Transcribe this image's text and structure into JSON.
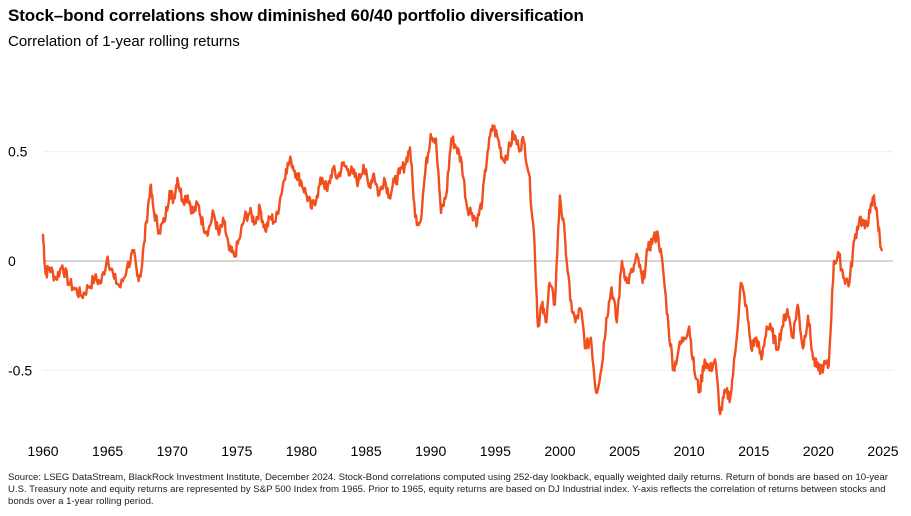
{
  "title": "Stock–bond correlations show diminished 60/40 portfolio diversification",
  "subtitle": "Correlation of 1-year rolling returns",
  "source": "Source: LSEG DataStream, BlackRock Investment Institute, December 2024. Stock-Bond correlations computed using 252-day lookback, equally weighted daily returns. Return of bonds are based on 10-year U.S. Treasury note and equity returns are represented by S&P 500 Index from 1965. Prior to 1965, equity returns are based on DJ Industrial index. Y-axis reflects the correlation of returns between stocks and bonds over a 1-year rolling period.",
  "colors": {
    "line": "#F24E1E",
    "zero_line": "#bdbdbd",
    "grid": "#eeeeee"
  },
  "chart_data": {
    "type": "line",
    "xlim": [
      1960,
      2025
    ],
    "ylim": [
      -0.8,
      0.8
    ],
    "x_ticks": [
      {
        "value": 1960,
        "label": "1960"
      },
      {
        "value": 1965,
        "label": "1965"
      },
      {
        "value": 1970,
        "label": "1970"
      },
      {
        "value": 1975,
        "label": "1975"
      },
      {
        "value": 1980,
        "label": "1980"
      },
      {
        "value": 1985,
        "label": "1985"
      },
      {
        "value": 1990,
        "label": "1990"
      },
      {
        "value": 1995,
        "label": "1995"
      },
      {
        "value": 2000,
        "label": "2000"
      },
      {
        "value": 2005,
        "label": "2005"
      },
      {
        "value": 2010,
        "label": "2010"
      },
      {
        "value": 2015,
        "label": "2015"
      },
      {
        "value": 2020,
        "label": "2020"
      },
      {
        "value": 2025,
        "label": "2025"
      }
    ],
    "y_ticks": [
      {
        "value": 0.5,
        "label": "0.5"
      },
      {
        "value": 0,
        "label": "0"
      },
      {
        "value": -0.5,
        "label": "-0.5"
      }
    ],
    "grid": true,
    "series": [
      {
        "x": [
          1960.0,
          1960.2,
          1960.5,
          1961.0,
          1961.5,
          1962.0,
          1962.5,
          1963.0,
          1963.5,
          1964.0,
          1964.5,
          1965.0,
          1965.5,
          1966.0,
          1966.5,
          1967.0,
          1967.3,
          1967.6,
          1968.0,
          1968.3,
          1968.6,
          1969.0,
          1969.4,
          1969.8,
          1970.1,
          1970.4,
          1970.8,
          1971.2,
          1971.6,
          1972.0,
          1972.4,
          1972.8,
          1973.2,
          1973.6,
          1974.0,
          1974.4,
          1974.8,
          1975.2,
          1975.6,
          1976.0,
          1976.4,
          1976.8,
          1977.2,
          1977.6,
          1978.0,
          1978.4,
          1978.8,
          1979.2,
          1979.6,
          1980.0,
          1980.4,
          1980.8,
          1981.2,
          1981.6,
          1982.0,
          1982.4,
          1982.8,
          1983.2,
          1983.6,
          1984.0,
          1984.4,
          1984.8,
          1985.2,
          1985.6,
          1986.0,
          1986.4,
          1986.8,
          1987.2,
          1987.6,
          1988.0,
          1988.4,
          1988.8,
          1989.2,
          1989.6,
          1990.0,
          1990.4,
          1990.8,
          1991.2,
          1991.6,
          1992.0,
          1992.4,
          1992.8,
          1993.2,
          1993.6,
          1994.0,
          1994.4,
          1994.8,
          1995.2,
          1995.6,
          1996.0,
          1996.4,
          1996.8,
          1997.2,
          1997.6,
          1998.0,
          1998.3,
          1998.6,
          1998.9,
          1999.2,
          1999.6,
          2000.0,
          2000.4,
          2000.8,
          2001.2,
          2001.6,
          2002.0,
          2002.4,
          2002.8,
          2003.2,
          2003.6,
          2004.0,
          2004.4,
          2004.8,
          2005.2,
          2005.6,
          2006.0,
          2006.4,
          2006.8,
          2007.2,
          2007.6,
          2008.0,
          2008.4,
          2008.8,
          2009.2,
          2009.6,
          2010.0,
          2010.4,
          2010.8,
          2011.2,
          2011.6,
          2012.0,
          2012.4,
          2012.8,
          2013.2,
          2013.6,
          2014.0,
          2014.4,
          2014.8,
          2015.2,
          2015.6,
          2016.0,
          2016.4,
          2016.8,
          2017.2,
          2017.6,
          2018.0,
          2018.4,
          2018.8,
          2019.2,
          2019.6,
          2020.0,
          2020.4,
          2020.8,
          2021.2,
          2021.6,
          2022.0,
          2022.4,
          2022.8,
          2023.2,
          2023.6,
          2024.0,
          2024.3,
          2024.6,
          2024.9
        ],
        "y": [
          0.12,
          -0.06,
          -0.03,
          -0.08,
          -0.02,
          -0.1,
          -0.13,
          -0.16,
          -0.12,
          -0.08,
          -0.1,
          0.02,
          -0.08,
          -0.12,
          -0.03,
          0.04,
          -0.07,
          -0.05,
          0.18,
          0.34,
          0.22,
          0.14,
          0.18,
          0.32,
          0.28,
          0.38,
          0.28,
          0.3,
          0.22,
          0.26,
          0.16,
          0.14,
          0.22,
          0.12,
          0.18,
          0.05,
          0.02,
          0.1,
          0.2,
          0.22,
          0.18,
          0.24,
          0.14,
          0.2,
          0.18,
          0.3,
          0.42,
          0.46,
          0.4,
          0.36,
          0.3,
          0.24,
          0.3,
          0.38,
          0.32,
          0.42,
          0.38,
          0.44,
          0.42,
          0.4,
          0.36,
          0.44,
          0.34,
          0.4,
          0.3,
          0.38,
          0.3,
          0.36,
          0.4,
          0.44,
          0.52,
          0.2,
          0.18,
          0.42,
          0.58,
          0.56,
          0.22,
          0.3,
          0.56,
          0.52,
          0.45,
          0.25,
          0.22,
          0.18,
          0.28,
          0.5,
          0.62,
          0.56,
          0.46,
          0.5,
          0.58,
          0.52,
          0.55,
          0.4,
          0.12,
          -0.3,
          -0.2,
          -0.28,
          -0.1,
          -0.2,
          0.3,
          0.1,
          -0.18,
          -0.28,
          -0.22,
          -0.4,
          -0.35,
          -0.6,
          -0.5,
          -0.26,
          -0.12,
          -0.28,
          0.0,
          -0.1,
          -0.05,
          0.02,
          -0.1,
          0.05,
          0.1,
          0.12,
          -0.05,
          -0.3,
          -0.5,
          -0.4,
          -0.35,
          -0.3,
          -0.5,
          -0.6,
          -0.45,
          -0.5,
          -0.45,
          -0.7,
          -0.6,
          -0.62,
          -0.4,
          -0.1,
          -0.2,
          -0.4,
          -0.35,
          -0.45,
          -0.3,
          -0.32,
          -0.4,
          -0.3,
          -0.22,
          -0.35,
          -0.2,
          -0.4,
          -0.25,
          -0.45,
          -0.5,
          -0.48,
          -0.48,
          0.0,
          0.02,
          -0.08,
          -0.1,
          0.1,
          0.2,
          0.15,
          0.22,
          0.3,
          0.18,
          0.05
        ]
      }
    ]
  }
}
